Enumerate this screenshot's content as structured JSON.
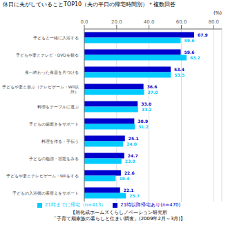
{
  "chart_data": {
    "type": "bar",
    "orientation": "horizontal",
    "title": "休日に夫がしていることTOP10（夫の平日の帰宅時間別）＊複数回答",
    "categories": [
      "子どもと一緒に入浴する",
      "子どもや妻とテレビ・DVDを観る",
      "食べ終わった食器を片づける",
      "子どもや妻と遊ぶ（テレビゲーム・Wii以\n外）",
      "料理をテーブルに運ぶ",
      "子どもの歯磨きをサポート",
      "料理を作る・手伝う",
      "子どもの勉強・宿題をみる",
      "子どもや妻とテレビゲーム・Wiiをする",
      "子どもの入浴後の着替えをサポート"
    ],
    "series": [
      {
        "name": "21時以降帰宅あり(n=470)",
        "color": "#0000CC",
        "values": [
          67.9,
          59.6,
          53.4,
          36.6,
          33.0,
          30.9,
          25.1,
          24.7,
          22.6,
          22.1
        ],
        "value_labels": [
          "67.9",
          "59.6",
          "53.4",
          "36.6",
          "33.0",
          "30.9",
          "25.1",
          "24.7",
          "22.6",
          "22.1"
        ]
      },
      {
        "name": "21時までに帰宅（n=413）",
        "color": "#00CCFF",
        "values": [
          59.6,
          63.2,
          53.5,
          37.0,
          33.2,
          31.2,
          24.0,
          23.0,
          19.4,
          25.7
        ],
        "value_labels": [
          "59.6",
          "63.2",
          "53.5",
          "37.0",
          "33.2",
          "31.2",
          "24.0",
          "23.0",
          "19.4",
          "25.7"
        ]
      }
    ],
    "xlim": [
      0,
      85
    ],
    "xticks": [
      {
        "value": 0,
        "label": "0.0"
      },
      {
        "value": 20,
        "label": "20.0"
      },
      {
        "value": 40,
        "label": "40.0"
      },
      {
        "value": 60,
        "label": "60.0"
      },
      {
        "value": 80,
        "label": "80.0"
      }
    ],
    "grid": true,
    "legend": "bottom",
    "data_labels": true,
    "annotations": [
      "(%)",
      "【旭化成ホームズくらしノベーション研究所\n「子育て期家族の暮らしと住まい調査」(2009年2月～3月)】"
    ]
  }
}
